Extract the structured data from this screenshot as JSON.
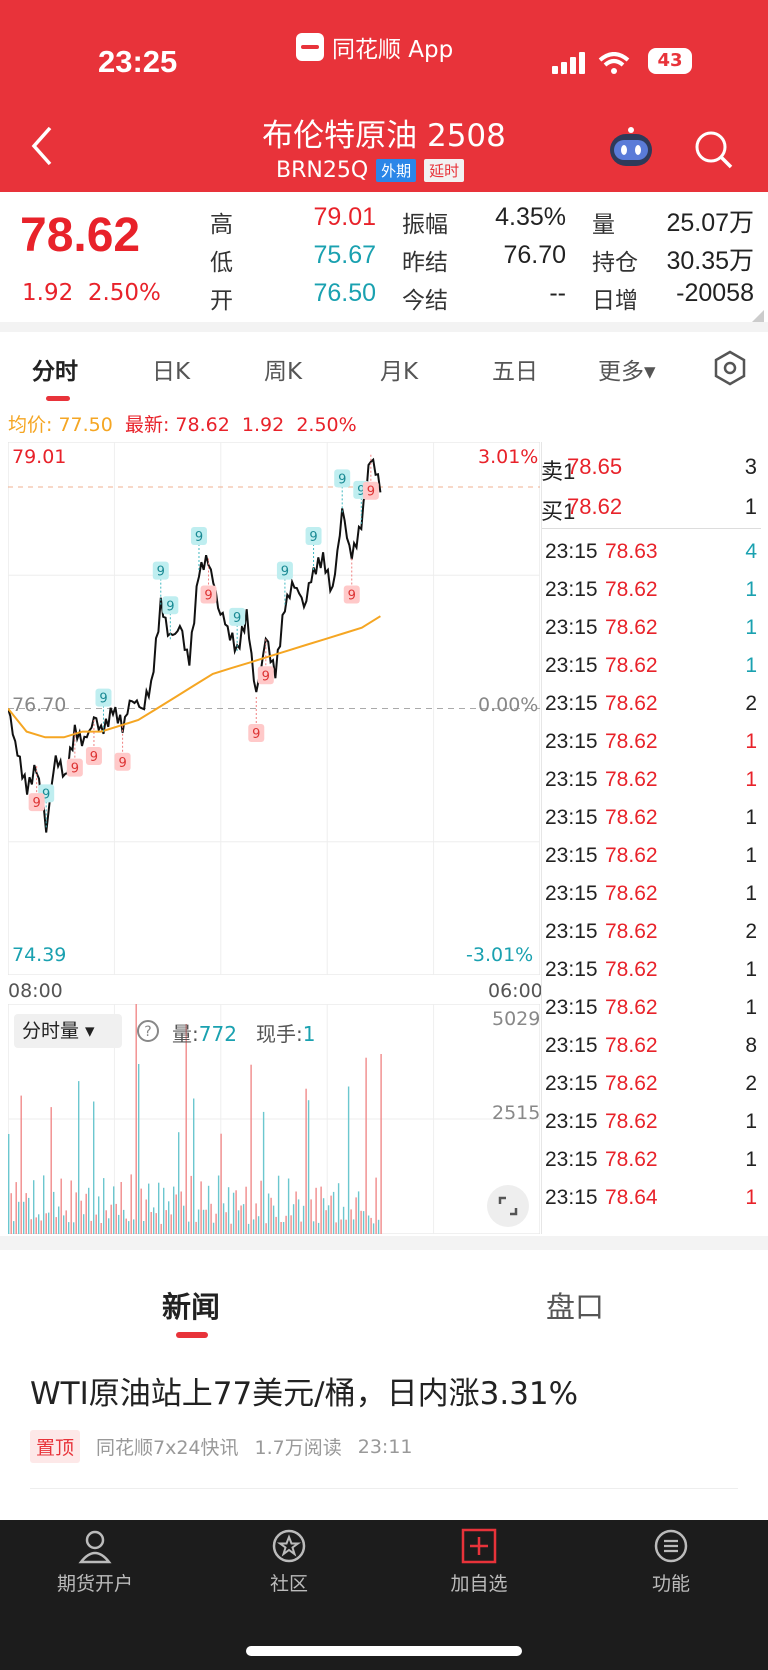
{
  "status_bar": {
    "time": "23:25",
    "app_name": "同花顺 App",
    "battery": "43"
  },
  "header": {
    "title": "布伦特原油 2508",
    "code": "BRN25Q",
    "badge_external": "外期",
    "badge_delay": "延时"
  },
  "quote": {
    "price": "78.62",
    "change": "1.92",
    "change_pct": "2.50%",
    "rows": [
      [
        {
          "label": "高",
          "value": "79.01",
          "color": "red"
        },
        {
          "label": "振幅",
          "value": "4.35%",
          "color": "dark"
        },
        {
          "label": "量",
          "value": "25.07万",
          "color": "dark"
        }
      ],
      [
        {
          "label": "低",
          "value": "75.67",
          "color": "teal"
        },
        {
          "label": "昨结",
          "value": "76.70",
          "color": "dark"
        },
        {
          "label": "持仓",
          "value": "30.35万",
          "color": "dark"
        }
      ],
      [
        {
          "label": "开",
          "value": "76.50",
          "color": "teal"
        },
        {
          "label": "今结",
          "value": "--",
          "color": "dark"
        },
        {
          "label": "日增",
          "value": "-20058",
          "color": "dark"
        }
      ]
    ]
  },
  "tabs": [
    "分时",
    "日K",
    "周K",
    "月K",
    "五日",
    "更多▾"
  ],
  "avg_line": {
    "avg_label": "均价:",
    "avg_value": "77.50",
    "latest_label": "最新:",
    "latest_value": "78.62",
    "chg": "1.92",
    "pct": "2.50%"
  },
  "chart_labels": {
    "high": "79.01",
    "high_pct": "3.01%",
    "mid": "76.70",
    "mid_pct": "0.00%",
    "low": "74.39",
    "low_pct": "-3.01%",
    "time_start": "08:00",
    "time_end": "06:00",
    "vol_max": "5029",
    "vol_mid": "2515",
    "vol_mode": "分时量 ▾",
    "vol_label": "量:",
    "vol_value": "772",
    "hand_label": "现手:",
    "hand_value": "1"
  },
  "chart_data": {
    "type": "line",
    "title": "",
    "series": [
      {
        "name": "最新",
        "color": "#111111"
      },
      {
        "name": "均价",
        "color": "#f5a623"
      }
    ],
    "x_range": [
      "08:00",
      "06:00"
    ],
    "ylim": [
      74.39,
      79.01
    ],
    "reference": 76.7,
    "price_path": [
      76.7,
      76.3,
      76.0,
      76.2,
      75.67,
      76.3,
      76.1,
      76.5,
      76.4,
      76.6,
      76.5,
      76.7,
      76.55,
      76.8,
      76.7,
      76.9,
      77.6,
      77.3,
      77.4,
      77.1,
      77.9,
      78.0,
      77.6,
      77.4,
      77.2,
      77.5,
      76.8,
      77.3,
      77.0,
      77.6,
      77.8,
      77.6,
      77.9,
      78.0,
      77.7,
      78.4,
      78.0,
      78.3,
      78.9,
      78.62
    ],
    "avg_path": [
      76.7,
      76.5,
      76.45,
      76.45,
      76.5,
      76.5,
      76.55,
      76.6,
      76.7,
      76.8,
      76.9,
      77.0,
      77.05,
      77.1,
      77.15,
      77.2,
      77.25,
      77.3,
      77.35,
      77.4,
      77.5
    ],
    "volume_max": 5029
  },
  "order_book": {
    "asks": [
      {
        "label": "卖1",
        "price": "78.65",
        "qty": "3"
      }
    ],
    "bids": [
      {
        "label": "买1",
        "price": "78.62",
        "qty": "1"
      }
    ],
    "trades": [
      {
        "t": "23:15",
        "p": "78.63",
        "q": "4",
        "qc": "teal"
      },
      {
        "t": "23:15",
        "p": "78.62",
        "q": "1",
        "qc": "teal"
      },
      {
        "t": "23:15",
        "p": "78.62",
        "q": "1",
        "qc": "teal"
      },
      {
        "t": "23:15",
        "p": "78.62",
        "q": "1",
        "qc": "teal"
      },
      {
        "t": "23:15",
        "p": "78.62",
        "q": "2",
        "qc": "dark"
      },
      {
        "t": "23:15",
        "p": "78.62",
        "q": "1",
        "qc": "red"
      },
      {
        "t": "23:15",
        "p": "78.62",
        "q": "1",
        "qc": "red"
      },
      {
        "t": "23:15",
        "p": "78.62",
        "q": "1",
        "qc": "dark"
      },
      {
        "t": "23:15",
        "p": "78.62",
        "q": "1",
        "qc": "dark"
      },
      {
        "t": "23:15",
        "p": "78.62",
        "q": "1",
        "qc": "dark"
      },
      {
        "t": "23:15",
        "p": "78.62",
        "q": "2",
        "qc": "dark"
      },
      {
        "t": "23:15",
        "p": "78.62",
        "q": "1",
        "qc": "dark"
      },
      {
        "t": "23:15",
        "p": "78.62",
        "q": "1",
        "qc": "dark"
      },
      {
        "t": "23:15",
        "p": "78.62",
        "q": "8",
        "qc": "dark"
      },
      {
        "t": "23:15",
        "p": "78.62",
        "q": "2",
        "qc": "dark"
      },
      {
        "t": "23:15",
        "p": "78.62",
        "q": "1",
        "qc": "dark"
      },
      {
        "t": "23:15",
        "p": "78.62",
        "q": "1",
        "qc": "dark"
      },
      {
        "t": "23:15",
        "p": "78.64",
        "q": "1",
        "qc": "red"
      }
    ]
  },
  "news_tabs": [
    "新闻",
    "盘口"
  ],
  "news": {
    "headline": "WTI原油站上77美元/桶，日内涨3.31%",
    "pin": "置顶",
    "source": "同花顺7x24快讯",
    "reads": "1.7万阅读",
    "time": "23:11"
  },
  "bottom_nav": [
    "期货开户",
    "社区",
    "加自选",
    "功能"
  ],
  "colors": {
    "brand": "#e8333a",
    "up": "#e8222a",
    "down": "#1aa1b0",
    "avg": "#f5a623"
  }
}
